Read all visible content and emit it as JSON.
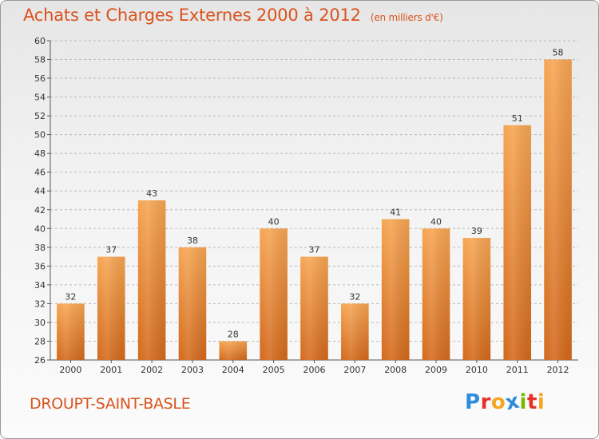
{
  "title": "Achats et Charges Externes 2000 à 2012",
  "title_unit": "(en milliers d'€)",
  "commune": "DROUPT-SAINT-BASLE",
  "logo": {
    "letters": [
      "P",
      "r",
      "o",
      "x",
      "i",
      "t",
      "i"
    ],
    "colors": [
      "#2f8ddb",
      "#e4322b",
      "#f5a623",
      "#2f8ddb",
      "#7ab800",
      "#e4322b",
      "#f5a623"
    ]
  },
  "chart_data": {
    "type": "bar",
    "title": "Achats et Charges Externes 2000 à 2012",
    "subtitle": "(en milliers d'€)",
    "categories": [
      "2000",
      "2001",
      "2002",
      "2003",
      "2004",
      "2005",
      "2006",
      "2007",
      "2008",
      "2009",
      "2010",
      "2011",
      "2012"
    ],
    "values": [
      32,
      37,
      43,
      38,
      28,
      40,
      37,
      32,
      41,
      40,
      39,
      51,
      58
    ],
    "ylim": [
      26,
      60
    ],
    "yticks": [
      26,
      28,
      30,
      32,
      34,
      36,
      38,
      40,
      42,
      44,
      46,
      48,
      50,
      52,
      54,
      56,
      58,
      60
    ],
    "grid": "horizontal dashed",
    "bar_color_top": "#f6a552",
    "bar_color_bottom": "#d3691c",
    "title_color": "#d9531e"
  }
}
